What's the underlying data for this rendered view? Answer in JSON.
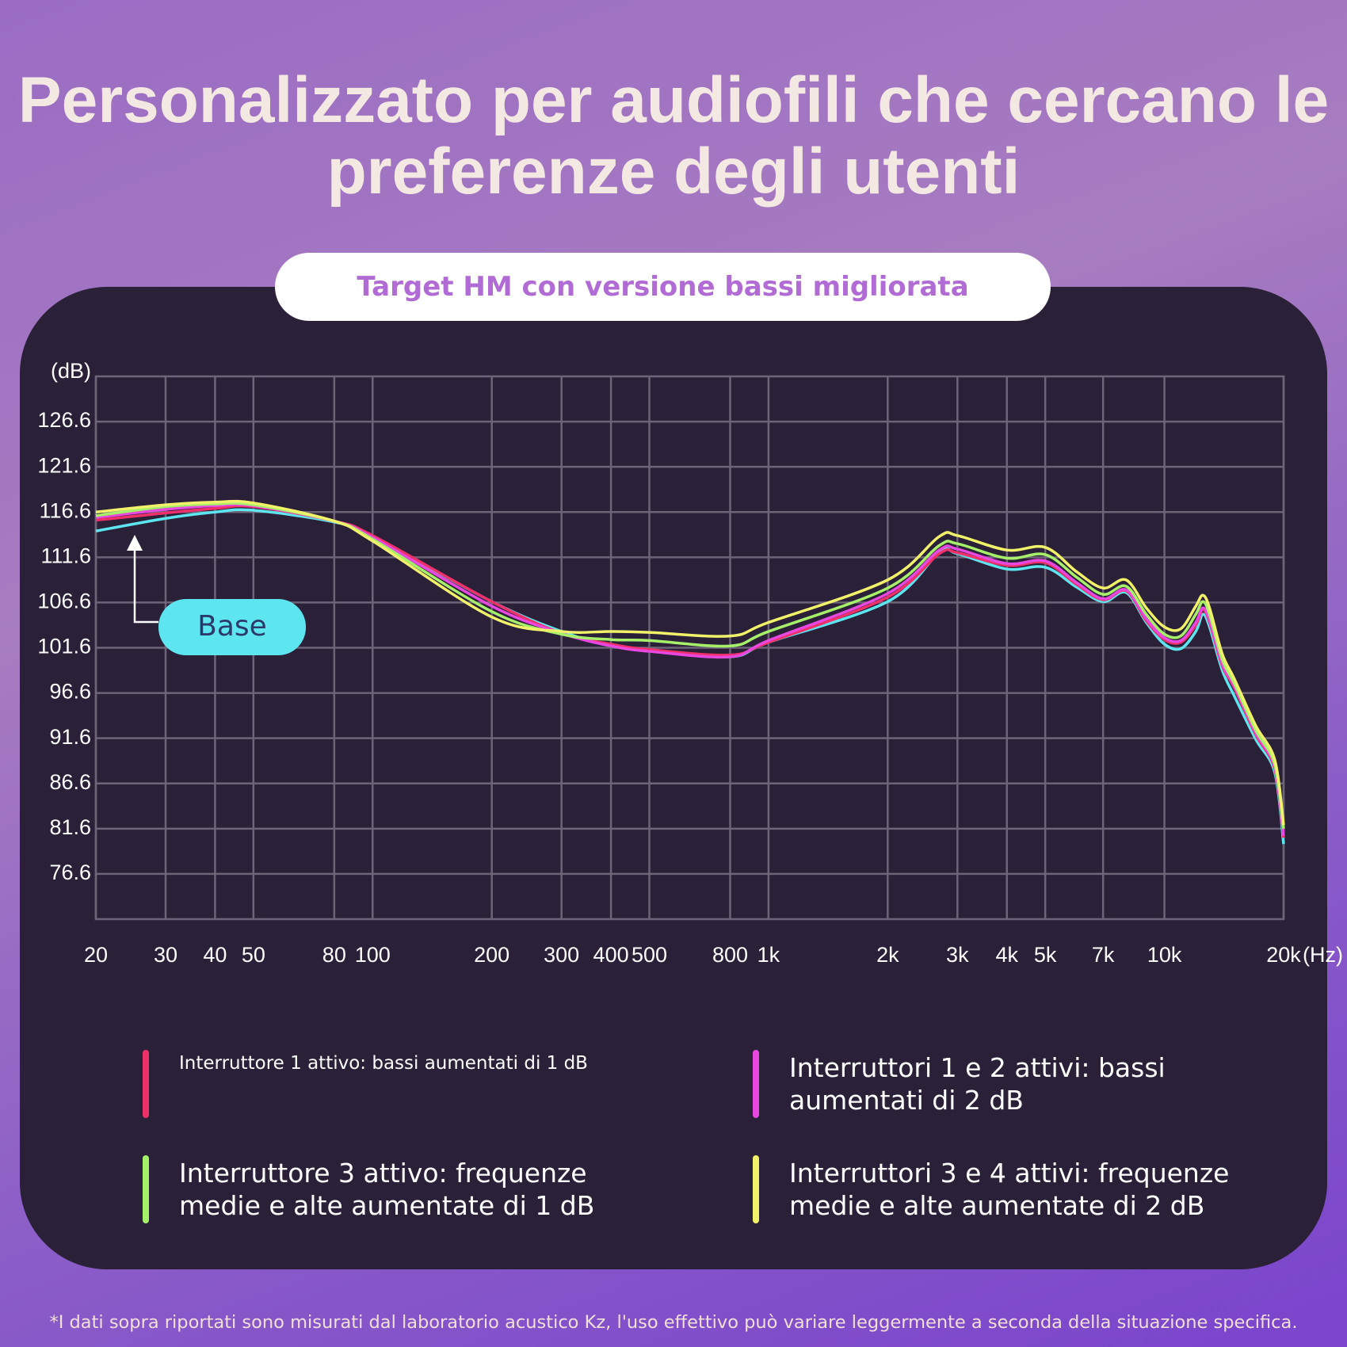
{
  "header": {
    "title": "Personalizzato per audiofili che cercano le preferenze degli utenti"
  },
  "chart_data": {
    "type": "line",
    "title": "Target HM con versione bassi migliorata",
    "y_label": "(dB)",
    "x_label": "(Hz)",
    "log_x": true,
    "grid": true,
    "xlim": [
      20,
      20000
    ],
    "ylim": [
      71.6,
      131.6
    ],
    "xticks": [
      20,
      30,
      40,
      50,
      80,
      100,
      200,
      300,
      400,
      500,
      800,
      {
        "value": 1000,
        "label": "1k"
      },
      {
        "value": 2000,
        "label": "2k"
      },
      {
        "value": 3000,
        "label": "3k"
      },
      {
        "value": 4000,
        "label": "4k"
      },
      {
        "value": 5000,
        "label": "5k"
      },
      {
        "value": 7000,
        "label": "7k"
      },
      {
        "value": 10000,
        "label": "10k"
      },
      {
        "value": 20000,
        "label": "20k"
      }
    ],
    "yticks": [
      126.6,
      121.6,
      116.6,
      111.6,
      106.6,
      101.6,
      96.6,
      91.6,
      86.6,
      81.6,
      76.6
    ],
    "x": [
      20,
      30,
      40,
      50,
      80,
      100,
      200,
      300,
      400,
      500,
      800,
      1000,
      2000,
      2700,
      3000,
      4000,
      5000,
      6000,
      7000,
      8000,
      9000,
      10000,
      11000,
      12000,
      12500,
      13000,
      14000,
      15000,
      17000,
      19000,
      20000
    ],
    "series": [
      {
        "name": "Base",
        "color": "#5ee6f0",
        "values": [
          114.5,
          115.9,
          116.6,
          116.8,
          115.5,
          113.9,
          106.7,
          103.4,
          101.8,
          101.4,
          100.6,
          102.2,
          106.7,
          112.1,
          112.0,
          110.3,
          110.5,
          108.3,
          106.7,
          107.7,
          104.4,
          102.0,
          101.5,
          103.4,
          105.3,
          103.9,
          99.1,
          96.3,
          91.5,
          87.8,
          79.9
        ]
      },
      {
        "name": "Interruttore 1 attivo: bassi aumentati di 1 dB",
        "color": "#f0306a",
        "values": [
          115.7,
          116.5,
          117.0,
          117.2,
          115.6,
          114.0,
          106.7,
          103.2,
          102.0,
          101.4,
          100.8,
          102.2,
          107.2,
          112.0,
          112.1,
          110.7,
          111.0,
          108.6,
          106.9,
          107.9,
          104.6,
          102.5,
          102.2,
          104.1,
          105.8,
          104.4,
          99.6,
          97.2,
          92.0,
          88.2,
          80.6
        ]
      },
      {
        "name": "Interruttori 1 e 2 attivi: bassi aumentati di 2 dB",
        "color": "#e848e0",
        "values": [
          116.0,
          116.9,
          117.3,
          117.3,
          115.6,
          113.8,
          106.2,
          103.2,
          101.8,
          101.2,
          100.6,
          102.4,
          107.6,
          112.4,
          112.5,
          110.9,
          111.2,
          108.8,
          107.0,
          108.0,
          104.8,
          102.7,
          102.4,
          104.4,
          106.0,
          104.6,
          99.8,
          97.4,
          92.2,
          88.4,
          80.8
        ]
      },
      {
        "name": "Interruttore 3 attivo: frequenze medie e alte aumentate di 1 dB",
        "color": "#a6f06a",
        "values": [
          116.2,
          117.2,
          117.5,
          117.4,
          115.6,
          113.6,
          105.6,
          103.1,
          102.5,
          102.4,
          101.8,
          103.4,
          108.2,
          112.9,
          113.1,
          111.5,
          111.9,
          109.4,
          107.5,
          108.4,
          105.3,
          103.1,
          102.9,
          105.3,
          106.7,
          105.3,
          100.3,
          97.7,
          92.5,
          88.7,
          81.6
        ]
      },
      {
        "name": "Interruttori 3 e 4 attivi: frequenze medie e alte aumentate di 2 dB",
        "color": "#f2f26a",
        "values": [
          116.6,
          117.4,
          117.7,
          117.6,
          115.6,
          113.4,
          105.0,
          103.4,
          103.4,
          103.3,
          102.9,
          104.4,
          109.1,
          113.9,
          114.0,
          112.4,
          112.7,
          110.0,
          108.2,
          109.1,
          106.0,
          103.9,
          103.7,
          106.2,
          107.4,
          106.0,
          100.9,
          98.2,
          93.0,
          89.2,
          82.0
        ]
      }
    ]
  },
  "footnote": "*I dati sopra riportati sono misurati dal laboratorio acustico Kz, l'uso effettivo può variare leggermente a seconda della situazione specifica."
}
